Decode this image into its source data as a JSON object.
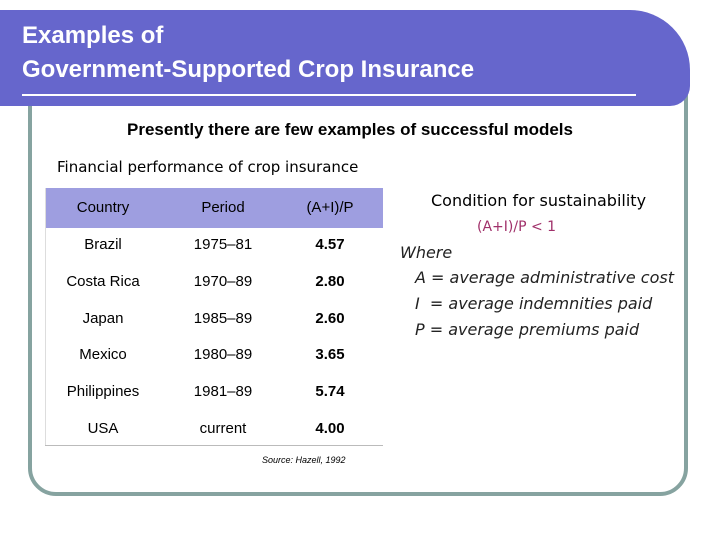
{
  "header": {
    "title_lines": [
      "Examples of",
      "Government-Supported Crop Insurance"
    ]
  },
  "subtitle": "Presently there are few examples of successful models",
  "table": {
    "caption": "Financial performance of crop insurance",
    "columns": [
      "Country",
      "Period",
      "(A+I)/P"
    ],
    "rows": [
      [
        "Brazil",
        "1975–81",
        "4.57"
      ],
      [
        "Costa Rica",
        "1970–89",
        "2.80"
      ],
      [
        "Japan",
        "1985–89",
        "2.60"
      ],
      [
        "Mexico",
        "1980–89",
        "3.65"
      ],
      [
        "Philippines",
        "1981–89",
        "5.74"
      ],
      [
        "USA",
        "current",
        "4.00"
      ]
    ],
    "source": "Source: Hazell, 1992"
  },
  "condition": {
    "heading": "Condition for sustainability",
    "formula": "(A+I)/P < 1",
    "where": "Where",
    "definitions": [
      "A = average administrative cost",
      "I  = average indemnities paid",
      "P = average premiums paid"
    ]
  }
}
